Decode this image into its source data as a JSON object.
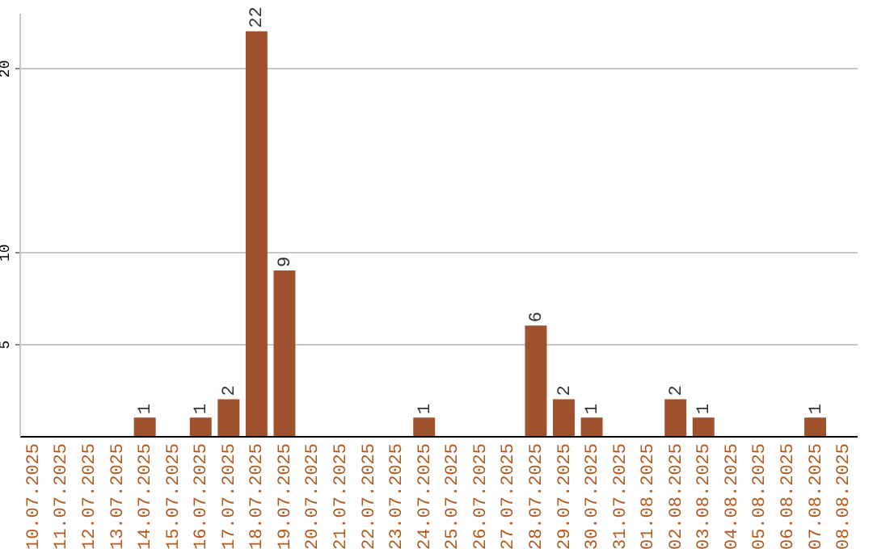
{
  "chart_data": {
    "type": "bar",
    "categories": [
      "10.07.2025",
      "11.07.2025",
      "12.07.2025",
      "13.07.2025",
      "14.07.2025",
      "15.07.2025",
      "16.07.2025",
      "17.07.2025",
      "18.07.2025",
      "19.07.2025",
      "20.07.2025",
      "21.07.2025",
      "22.07.2025",
      "23.07.2025",
      "24.07.2025",
      "25.07.2025",
      "26.07.2025",
      "27.07.2025",
      "28.07.2025",
      "29.07.2025",
      "30.07.2025",
      "31.07.2025",
      "01.08.2025",
      "02.08.2025",
      "03.08.2025",
      "04.08.2025",
      "05.08.2025",
      "06.08.2025",
      "07.08.2025",
      "08.08.2025"
    ],
    "values": [
      0,
      0,
      0,
      0,
      1,
      0,
      1,
      2,
      22,
      9,
      0,
      0,
      0,
      0,
      1,
      0,
      0,
      0,
      6,
      2,
      1,
      0,
      0,
      2,
      1,
      0,
      0,
      0,
      1,
      0
    ],
    "value_labels": [
      null,
      null,
      null,
      null,
      "1",
      null,
      "1",
      "2",
      "22",
      "9",
      null,
      null,
      null,
      null,
      "1",
      null,
      null,
      null,
      "6",
      "2",
      "1",
      null,
      null,
      "2",
      "1",
      null,
      null,
      null,
      "1",
      null
    ],
    "color": "#a0522d",
    "ylim": [
      0,
      23
    ],
    "yticks": [
      5,
      10,
      20
    ],
    "grid": "y"
  }
}
